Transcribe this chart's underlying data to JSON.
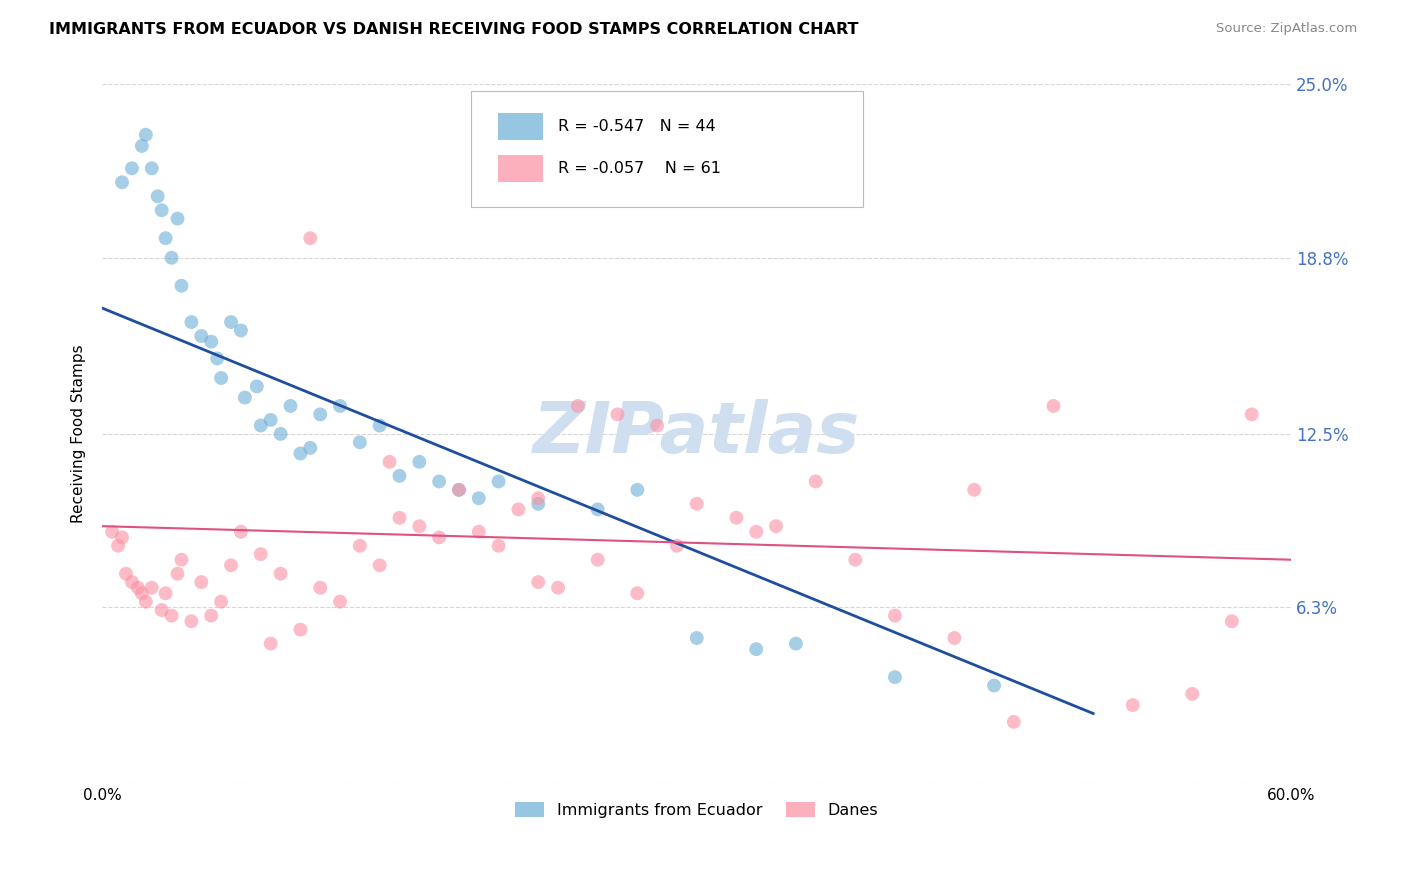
{
  "title": "IMMIGRANTS FROM ECUADOR VS DANISH RECEIVING FOOD STAMPS CORRELATION CHART",
  "source": "Source: ZipAtlas.com",
  "ylabel": "Receiving Food Stamps",
  "xlabel_vals": [
    0.0,
    10.0,
    20.0,
    30.0,
    40.0,
    50.0,
    60.0
  ],
  "ylabel_vals": [
    0.0,
    6.3,
    12.5,
    18.8,
    25.0
  ],
  "ylim": [
    0.0,
    25.0
  ],
  "xlim": [
    0.0,
    60.0
  ],
  "legend1_label": "Immigrants from Ecuador",
  "legend2_label": "Danes",
  "R1": "-0.547",
  "N1": "44",
  "R2": "-0.057",
  "N2": "61",
  "color_blue": "#6baed6",
  "color_pink": "#fc8fa3",
  "color_line_blue": "#1f4e9c",
  "color_line_pink": "#e05080",
  "color_axis_right": "#4472c4",
  "watermark_color": "#d0dff0",
  "background_color": "#ffffff",
  "grid_color": "#cccccc",
  "blue_line_x0": 0.0,
  "blue_line_y0": 17.0,
  "blue_line_x1": 50.0,
  "blue_line_y1": 2.5,
  "pink_line_x0": 0.0,
  "pink_line_y0": 9.2,
  "pink_line_x1": 60.0,
  "pink_line_y1": 8.0,
  "ecuador_x": [
    1.0,
    1.5,
    2.0,
    2.2,
    2.5,
    2.8,
    3.0,
    3.2,
    3.5,
    3.8,
    4.0,
    4.5,
    5.0,
    5.5,
    5.8,
    6.0,
    6.5,
    7.0,
    7.2,
    7.8,
    8.0,
    8.5,
    9.0,
    9.5,
    10.0,
    10.5,
    11.0,
    12.0,
    13.0,
    14.0,
    15.0,
    16.0,
    17.0,
    18.0,
    19.0,
    20.0,
    22.0,
    25.0,
    27.0,
    30.0,
    33.0,
    35.0,
    40.0,
    45.0
  ],
  "ecuador_y": [
    21.5,
    22.0,
    22.8,
    23.2,
    22.0,
    21.0,
    20.5,
    19.5,
    18.8,
    20.2,
    17.8,
    16.5,
    16.0,
    15.8,
    15.2,
    14.5,
    16.5,
    16.2,
    13.8,
    14.2,
    12.8,
    13.0,
    12.5,
    13.5,
    11.8,
    12.0,
    13.2,
    13.5,
    12.2,
    12.8,
    11.0,
    11.5,
    10.8,
    10.5,
    10.2,
    10.8,
    10.0,
    9.8,
    10.5,
    5.2,
    4.8,
    5.0,
    3.8,
    3.5
  ],
  "danes_x": [
    0.5,
    0.8,
    1.0,
    1.2,
    1.5,
    1.8,
    2.0,
    2.2,
    2.5,
    3.0,
    3.2,
    3.5,
    3.8,
    4.0,
    4.5,
    5.0,
    5.5,
    6.0,
    6.5,
    7.0,
    8.0,
    9.0,
    10.0,
    11.0,
    12.0,
    13.0,
    14.0,
    15.0,
    16.0,
    17.0,
    18.0,
    19.0,
    20.0,
    21.0,
    22.0,
    24.0,
    26.0,
    28.0,
    30.0,
    32.0,
    34.0,
    36.0,
    38.0,
    40.0,
    43.0,
    46.0,
    48.0,
    52.0,
    55.0,
    57.0,
    58.0,
    44.0,
    29.0,
    25.0,
    23.0,
    10.5,
    8.5,
    14.5,
    27.0,
    22.0,
    33.0
  ],
  "danes_y": [
    9.0,
    8.5,
    8.8,
    7.5,
    7.2,
    7.0,
    6.8,
    6.5,
    7.0,
    6.2,
    6.8,
    6.0,
    7.5,
    8.0,
    5.8,
    7.2,
    6.0,
    6.5,
    7.8,
    9.0,
    8.2,
    7.5,
    5.5,
    7.0,
    6.5,
    8.5,
    7.8,
    9.5,
    9.2,
    8.8,
    10.5,
    9.0,
    8.5,
    9.8,
    10.2,
    13.5,
    13.2,
    12.8,
    10.0,
    9.5,
    9.2,
    10.8,
    8.0,
    6.0,
    5.2,
    2.2,
    13.5,
    2.8,
    3.2,
    5.8,
    13.2,
    10.5,
    8.5,
    8.0,
    7.0,
    19.5,
    5.0,
    11.5,
    6.8,
    7.2,
    9.0
  ]
}
